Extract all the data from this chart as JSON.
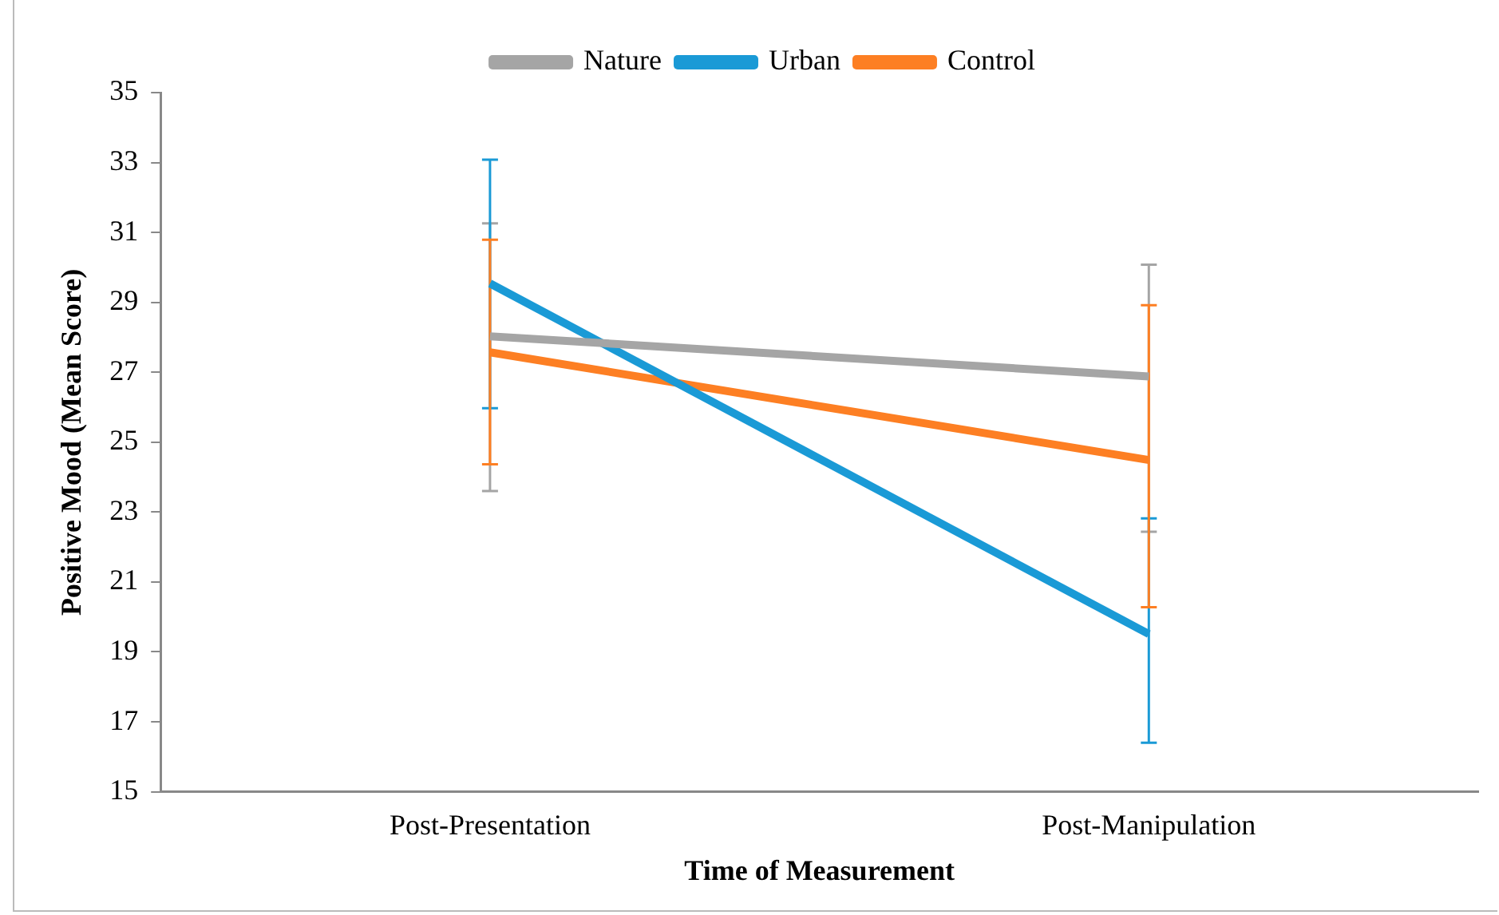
{
  "chart_data": {
    "type": "line",
    "xlabel": "Time of Measurement",
    "ylabel": "Positive Mood (Mean Score)",
    "categories": [
      "Post-Presentation",
      "Post-Manipulation"
    ],
    "series": [
      {
        "name": "Nature",
        "color": "#a5a5a5",
        "values": [
          28.03,
          26.88
        ],
        "errors": [
          [
            23.6,
            31.26
          ],
          [
            22.44,
            30.08
          ]
        ]
      },
      {
        "name": "Urban",
        "color": "#1a9ad6",
        "values": [
          29.54,
          19.51
        ],
        "errors": [
          [
            25.97,
            33.08
          ],
          [
            16.4,
            22.82
          ]
        ]
      },
      {
        "name": "Control",
        "color": "#fd7f23",
        "values": [
          27.57,
          24.49
        ],
        "errors": [
          [
            24.37,
            30.79
          ],
          [
            20.28,
            28.92
          ]
        ]
      }
    ],
    "ylim": [
      15,
      35
    ],
    "yticks": [
      15,
      17,
      19,
      21,
      23,
      25,
      27,
      29,
      31,
      33,
      35
    ],
    "grid": false,
    "legend": "top",
    "marker": "none",
    "line_style": "solid"
  }
}
